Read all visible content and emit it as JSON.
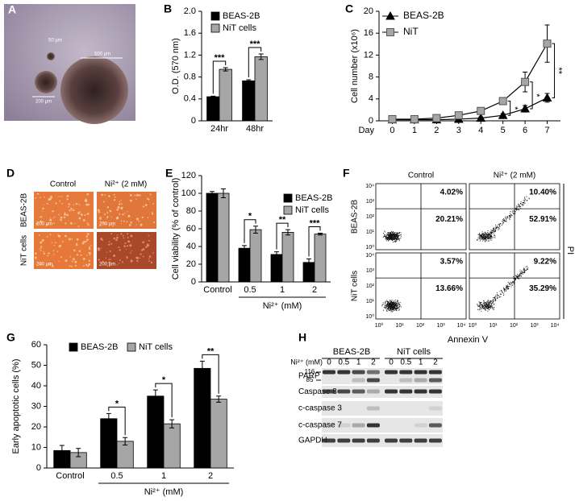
{
  "panel_a": {
    "panel": "A",
    "scale_labels": [
      "50 µm",
      "500 µm",
      "200 µm"
    ]
  },
  "panel_d": {
    "panel": "D",
    "columns": [
      "Control",
      "Ni²⁺ (2 mM)"
    ],
    "rows": [
      "BEAS-2B",
      "NiT cells"
    ],
    "scale_label": "200 µm"
  },
  "panel_f": {
    "panel": "F",
    "columns": [
      "Control",
      "Ni²⁺ (2 mM)"
    ],
    "rows": [
      "BEAS-2B",
      "NiT cells"
    ],
    "quadrants": [
      [
        "4.02%",
        "20.21%"
      ],
      [
        "10.40%",
        "52.91%"
      ],
      [
        "3.57%",
        "13.66%"
      ],
      [
        "9.22%",
        "35.29%"
      ]
    ],
    "axis_ticks": [
      "10⁰",
      "10¹",
      "10²",
      "10³",
      "10⁴"
    ],
    "y_label": "PI",
    "x_label": "Annexin V"
  },
  "panel_h": {
    "panel": "H",
    "groups": [
      "BEAS-2B",
      "NiT cells"
    ],
    "dose_label": "Ni²⁺ (mM)",
    "lanes": [
      "0",
      "0.5",
      "1",
      "2",
      "0",
      "0.5",
      "1",
      "2"
    ],
    "rows": [
      "PARP",
      "Caspase 8",
      "c-caspase 3",
      "c-caspase 7",
      "GAPDH"
    ],
    "markers": [
      "116",
      "85"
    ]
  },
  "chart_data": [
    {
      "panel": "B",
      "type": "bar",
      "categories": [
        "24hr",
        "48hr"
      ],
      "series": [
        {
          "name": "BEAS-2B",
          "color": "#000000",
          "values": [
            0.44,
            0.73
          ],
          "errors": [
            0.01,
            0.02
          ]
        },
        {
          "name": "NiT cells",
          "color": "#a6a6a6",
          "values": [
            0.94,
            1.17
          ],
          "errors": [
            0.03,
            0.05
          ]
        }
      ],
      "significance": [
        "***",
        "***"
      ],
      "ylabel": "O.D. (570 nm)",
      "ylim": [
        0,
        2
      ],
      "yticks": [
        0,
        0.4,
        0.8,
        1.2,
        1.6,
        {
          "value": 2,
          "label": "2.0"
        }
      ],
      "legend": "upper left"
    },
    {
      "panel": "C",
      "type": "line",
      "x": [
        0,
        1,
        2,
        3,
        4,
        5,
        6,
        7
      ],
      "xlabel": "Day",
      "series": [
        {
          "name": "BEAS-2B",
          "color": "#000000",
          "marker": "triangle",
          "values": [
            0.2,
            0.2,
            0.2,
            0.3,
            0.5,
            1.0,
            2.2,
            4.2
          ],
          "errors": [
            0.1,
            0.1,
            0.1,
            0.1,
            0.2,
            0.3,
            0.6,
            0.8
          ]
        },
        {
          "name": "NiT",
          "color": "#a6a6a6",
          "marker": "square",
          "values": [
            0.3,
            0.3,
            0.5,
            1.0,
            1.8,
            3.6,
            7.1,
            14.1
          ],
          "errors": [
            0.1,
            0.1,
            0.2,
            0.3,
            0.4,
            0.6,
            1.8,
            3.4
          ]
        }
      ],
      "significance": [
        null,
        null,
        null,
        null,
        null,
        "*",
        "*",
        "**"
      ],
      "ylabel": "Cell number (x10⁶)",
      "xlim": [
        -0.6,
        7.6
      ],
      "xticks": [
        0,
        1,
        2,
        3,
        4,
        5,
        6,
        7
      ],
      "ylim": [
        0,
        20
      ],
      "yticks": [
        0,
        4,
        8,
        12,
        16,
        20
      ],
      "legend": "upper left"
    },
    {
      "panel": "E",
      "type": "bar",
      "categories": [
        "Control",
        "0.5",
        "1",
        "2"
      ],
      "xlabel": "Ni²⁺ (mM)",
      "series": [
        {
          "name": "BEAS-2B",
          "color": "#000000",
          "values": [
            100,
            38,
            31,
            22
          ],
          "errors": [
            2,
            3,
            3,
            4
          ]
        },
        {
          "name": "NiT cells",
          "color": "#a6a6a6",
          "values": [
            100,
            59,
            56,
            54
          ],
          "errors": [
            5,
            4,
            3,
            1
          ]
        }
      ],
      "significance": [
        null,
        "*",
        "**",
        "***"
      ],
      "ylabel": "Cell viability (% of control)",
      "ylim": [
        0,
        120
      ],
      "yticks": [
        0,
        20,
        40,
        60,
        80,
        100,
        120
      ],
      "legend": "upper right"
    },
    {
      "panel": "G",
      "type": "bar",
      "categories": [
        "Control",
        "0.5",
        "1",
        "2"
      ],
      "xlabel": "Ni²⁺ (mM)",
      "series": [
        {
          "name": "BEAS-2B",
          "color": "#000000",
          "values": [
            8.5,
            24,
            35,
            48.5
          ],
          "errors": [
            2.5,
            2.5,
            3,
            3.5
          ]
        },
        {
          "name": "NiT cells",
          "color": "#a6a6a6",
          "values": [
            7.5,
            13,
            21.5,
            33.5
          ],
          "errors": [
            2,
            1.8,
            2,
            1.5
          ]
        }
      ],
      "significance": [
        null,
        "*",
        "*",
        "**"
      ],
      "ylabel": "Early apoptotic cells (%)",
      "ylim": [
        0,
        60
      ],
      "yticks": [
        0,
        10,
        20,
        30,
        40,
        50,
        60
      ],
      "legend": "upper left"
    }
  ]
}
